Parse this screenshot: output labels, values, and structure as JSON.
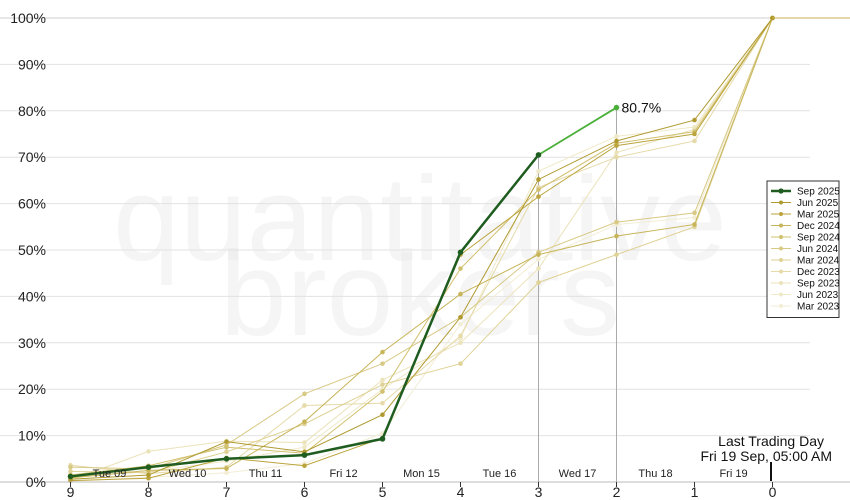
{
  "chart_data": {
    "type": "line",
    "x": [
      9,
      8,
      7,
      6,
      5,
      4,
      3,
      2,
      1,
      0
    ],
    "xlim": [
      9.8,
      -0.5
    ],
    "ylim": [
      0,
      100
    ],
    "yticks": [
      "0%",
      "10%",
      "20%",
      "30%",
      "40%",
      "50%",
      "60%",
      "70%",
      "80%",
      "90%",
      "100%"
    ],
    "xticks": [
      "9",
      "8",
      "7",
      "6",
      "5",
      "4",
      "3",
      "2",
      "1",
      "0"
    ],
    "day_labels": [
      {
        "label": "Tue 09",
        "at": 8.5
      },
      {
        "label": "Wed 10",
        "at": 7.5
      },
      {
        "label": "Thu 11",
        "at": 6.5
      },
      {
        "label": "Fri 12",
        "at": 5.5
      },
      {
        "label": "Mon 15",
        "at": 4.5
      },
      {
        "label": "Tue 16",
        "at": 3.5
      },
      {
        "label": "Wed 17",
        "at": 2.5
      },
      {
        "label": "Thu 18",
        "at": 1.5
      },
      {
        "label": "Fri 19",
        "at": 0.5
      }
    ],
    "vlines": [
      3,
      2
    ],
    "watermark": [
      "quantitative",
      "brokers"
    ],
    "last_trading_day": {
      "line1": "Last Trading Day",
      "line2": "Fri 19 Sep, 05:00 AM"
    },
    "end_label": "80.7%",
    "grid": true,
    "legend_position": "right",
    "series": [
      {
        "name": "Sep 2025",
        "color": "#1f5c1f",
        "values": [
          1.2,
          3.2,
          5.0,
          5.8,
          9.3,
          49.5,
          70.5,
          80.7,
          null,
          null
        ]
      },
      {
        "name": "Jun 2025",
        "color": "#b09a30",
        "values": [
          0.6,
          1.5,
          8.7,
          6.5,
          14.5,
          35.5,
          65.2,
          73.5,
          78.0,
          100.0
        ]
      },
      {
        "name": "Mar 2025",
        "color": "#bba43c",
        "values": [
          0.3,
          0.8,
          5.2,
          3.5,
          9.5,
          49.0,
          61.5,
          72.5,
          75.0,
          100.0
        ]
      },
      {
        "name": "Dec 2024",
        "color": "#c8b55a",
        "values": [
          0.9,
          2.5,
          2.9,
          13.0,
          28.0,
          40.5,
          49.0,
          53.0,
          55.5,
          100.0
        ]
      },
      {
        "name": "Sep 2024",
        "color": "#d1c06e",
        "values": [
          1.5,
          3.5,
          7.5,
          6.2,
          19.5,
          46.0,
          63.0,
          73.0,
          75.5,
          100.0
        ]
      },
      {
        "name": "Jun 2024",
        "color": "#d8c985",
        "values": [
          3.2,
          2.8,
          8.0,
          19.0,
          25.5,
          35.5,
          49.5,
          56.0,
          58.0,
          100.0
        ]
      },
      {
        "name": "Mar 2024",
        "color": "#dfd296",
        "values": [
          2.3,
          2.0,
          6.5,
          12.5,
          21.0,
          25.5,
          43.0,
          49.0,
          55.0,
          100.0
        ]
      },
      {
        "name": "Dec 2023",
        "color": "#e5daa8",
        "values": [
          3.6,
          1.8,
          3.2,
          16.5,
          17.0,
          31.5,
          63.5,
          70.0,
          73.5,
          100.0
        ]
      },
      {
        "name": "Sep 2023",
        "color": "#ebe3ba",
        "values": [
          0.4,
          6.6,
          8.8,
          8.5,
          22.0,
          30.0,
          46.0,
          71.0,
          76.0,
          100.0
        ]
      },
      {
        "name": "Jun 2023",
        "color": "#efe9c8",
        "values": [
          1.0,
          2.2,
          4.5,
          7.5,
          20.0,
          31.0,
          67.0,
          74.5,
          76.5,
          100.0
        ]
      },
      {
        "name": "Mar 2023",
        "color": "#f2edd4",
        "values": [
          0.2,
          1.0,
          2.0,
          4.0,
          10.5,
          34.0,
          48.0,
          55.5,
          57.0,
          100.0
        ]
      }
    ]
  }
}
